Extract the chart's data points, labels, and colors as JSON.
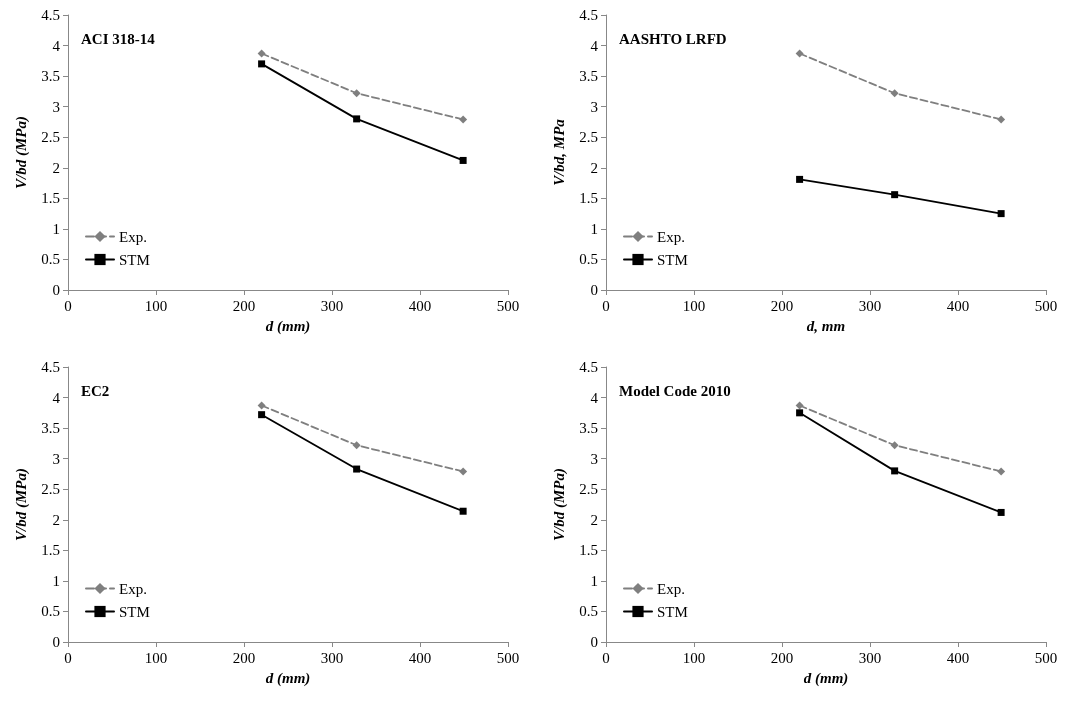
{
  "chart_data": [
    {
      "type": "line",
      "title": "ACI 318-14",
      "xlabel": "d (mm)",
      "ylabel": "V/bd (MPa)",
      "xlim": [
        0,
        500
      ],
      "xticks": [
        0,
        100,
        200,
        300,
        400,
        500
      ],
      "ylim": [
        0,
        4.5
      ],
      "yticks": [
        0,
        0.5,
        1,
        1.5,
        2,
        2.5,
        3,
        3.5,
        4,
        4.5
      ],
      "grid": false,
      "legend": "bottom left",
      "x": [
        220,
        328,
        449
      ],
      "series": [
        {
          "name": "Exp.",
          "color": "#7f7f7f",
          "marker": "diamond",
          "line_style": "dashed",
          "values": [
            3.87,
            3.22,
            2.79
          ]
        },
        {
          "name": "STM",
          "color": "#000000",
          "marker": "square",
          "line_style": "solid",
          "values": [
            3.7,
            2.8,
            2.12
          ]
        }
      ]
    },
    {
      "type": "line",
      "title": "AASHTO LRFD",
      "xlabel": "d, mm",
      "ylabel": "V/bd, MPa",
      "xlim": [
        0,
        500
      ],
      "xticks": [
        0,
        100,
        200,
        300,
        400,
        500
      ],
      "ylim": [
        0,
        4.5
      ],
      "yticks": [
        0,
        0.5,
        1,
        1.5,
        2,
        2.5,
        3,
        3.5,
        4,
        4.5
      ],
      "grid": false,
      "legend": "bottom left",
      "x": [
        220,
        328,
        449
      ],
      "series": [
        {
          "name": "Exp.",
          "color": "#7f7f7f",
          "marker": "diamond",
          "line_style": "dashed",
          "values": [
            3.87,
            3.22,
            2.79
          ]
        },
        {
          "name": "STM",
          "color": "#000000",
          "marker": "square",
          "line_style": "solid",
          "values": [
            1.81,
            1.56,
            1.25
          ]
        }
      ]
    },
    {
      "type": "line",
      "title": "EC2",
      "xlabel": "d (mm)",
      "ylabel": "V/bd (MPa)",
      "xlim": [
        0,
        500
      ],
      "xticks": [
        0,
        100,
        200,
        300,
        400,
        500
      ],
      "ylim": [
        0,
        4.5
      ],
      "yticks": [
        0,
        0.5,
        1,
        1.5,
        2,
        2.5,
        3,
        3.5,
        4,
        4.5
      ],
      "grid": false,
      "legend": "bottom left",
      "x": [
        220,
        328,
        449
      ],
      "series": [
        {
          "name": "Exp.",
          "color": "#7f7f7f",
          "marker": "diamond",
          "line_style": "dashed",
          "values": [
            3.87,
            3.22,
            2.79
          ]
        },
        {
          "name": "STM",
          "color": "#000000",
          "marker": "square",
          "line_style": "solid",
          "values": [
            3.72,
            2.83,
            2.14
          ]
        }
      ]
    },
    {
      "type": "line",
      "title": "Model Code 2010",
      "xlabel": "d (mm)",
      "ylabel": "V/bd (MPa)",
      "xlim": [
        0,
        500
      ],
      "xticks": [
        0,
        100,
        200,
        300,
        400,
        500
      ],
      "ylim": [
        0,
        4.5
      ],
      "yticks": [
        0,
        0.5,
        1,
        1.5,
        2,
        2.5,
        3,
        3.5,
        4,
        4.5
      ],
      "grid": false,
      "legend": "bottom left",
      "x": [
        220,
        328,
        449
      ],
      "series": [
        {
          "name": "Exp.",
          "color": "#7f7f7f",
          "marker": "diamond",
          "line_style": "dashed",
          "values": [
            3.87,
            3.22,
            2.79
          ]
        },
        {
          "name": "STM",
          "color": "#000000",
          "marker": "square",
          "line_style": "solid",
          "values": [
            3.75,
            2.8,
            2.12
          ]
        }
      ]
    }
  ]
}
